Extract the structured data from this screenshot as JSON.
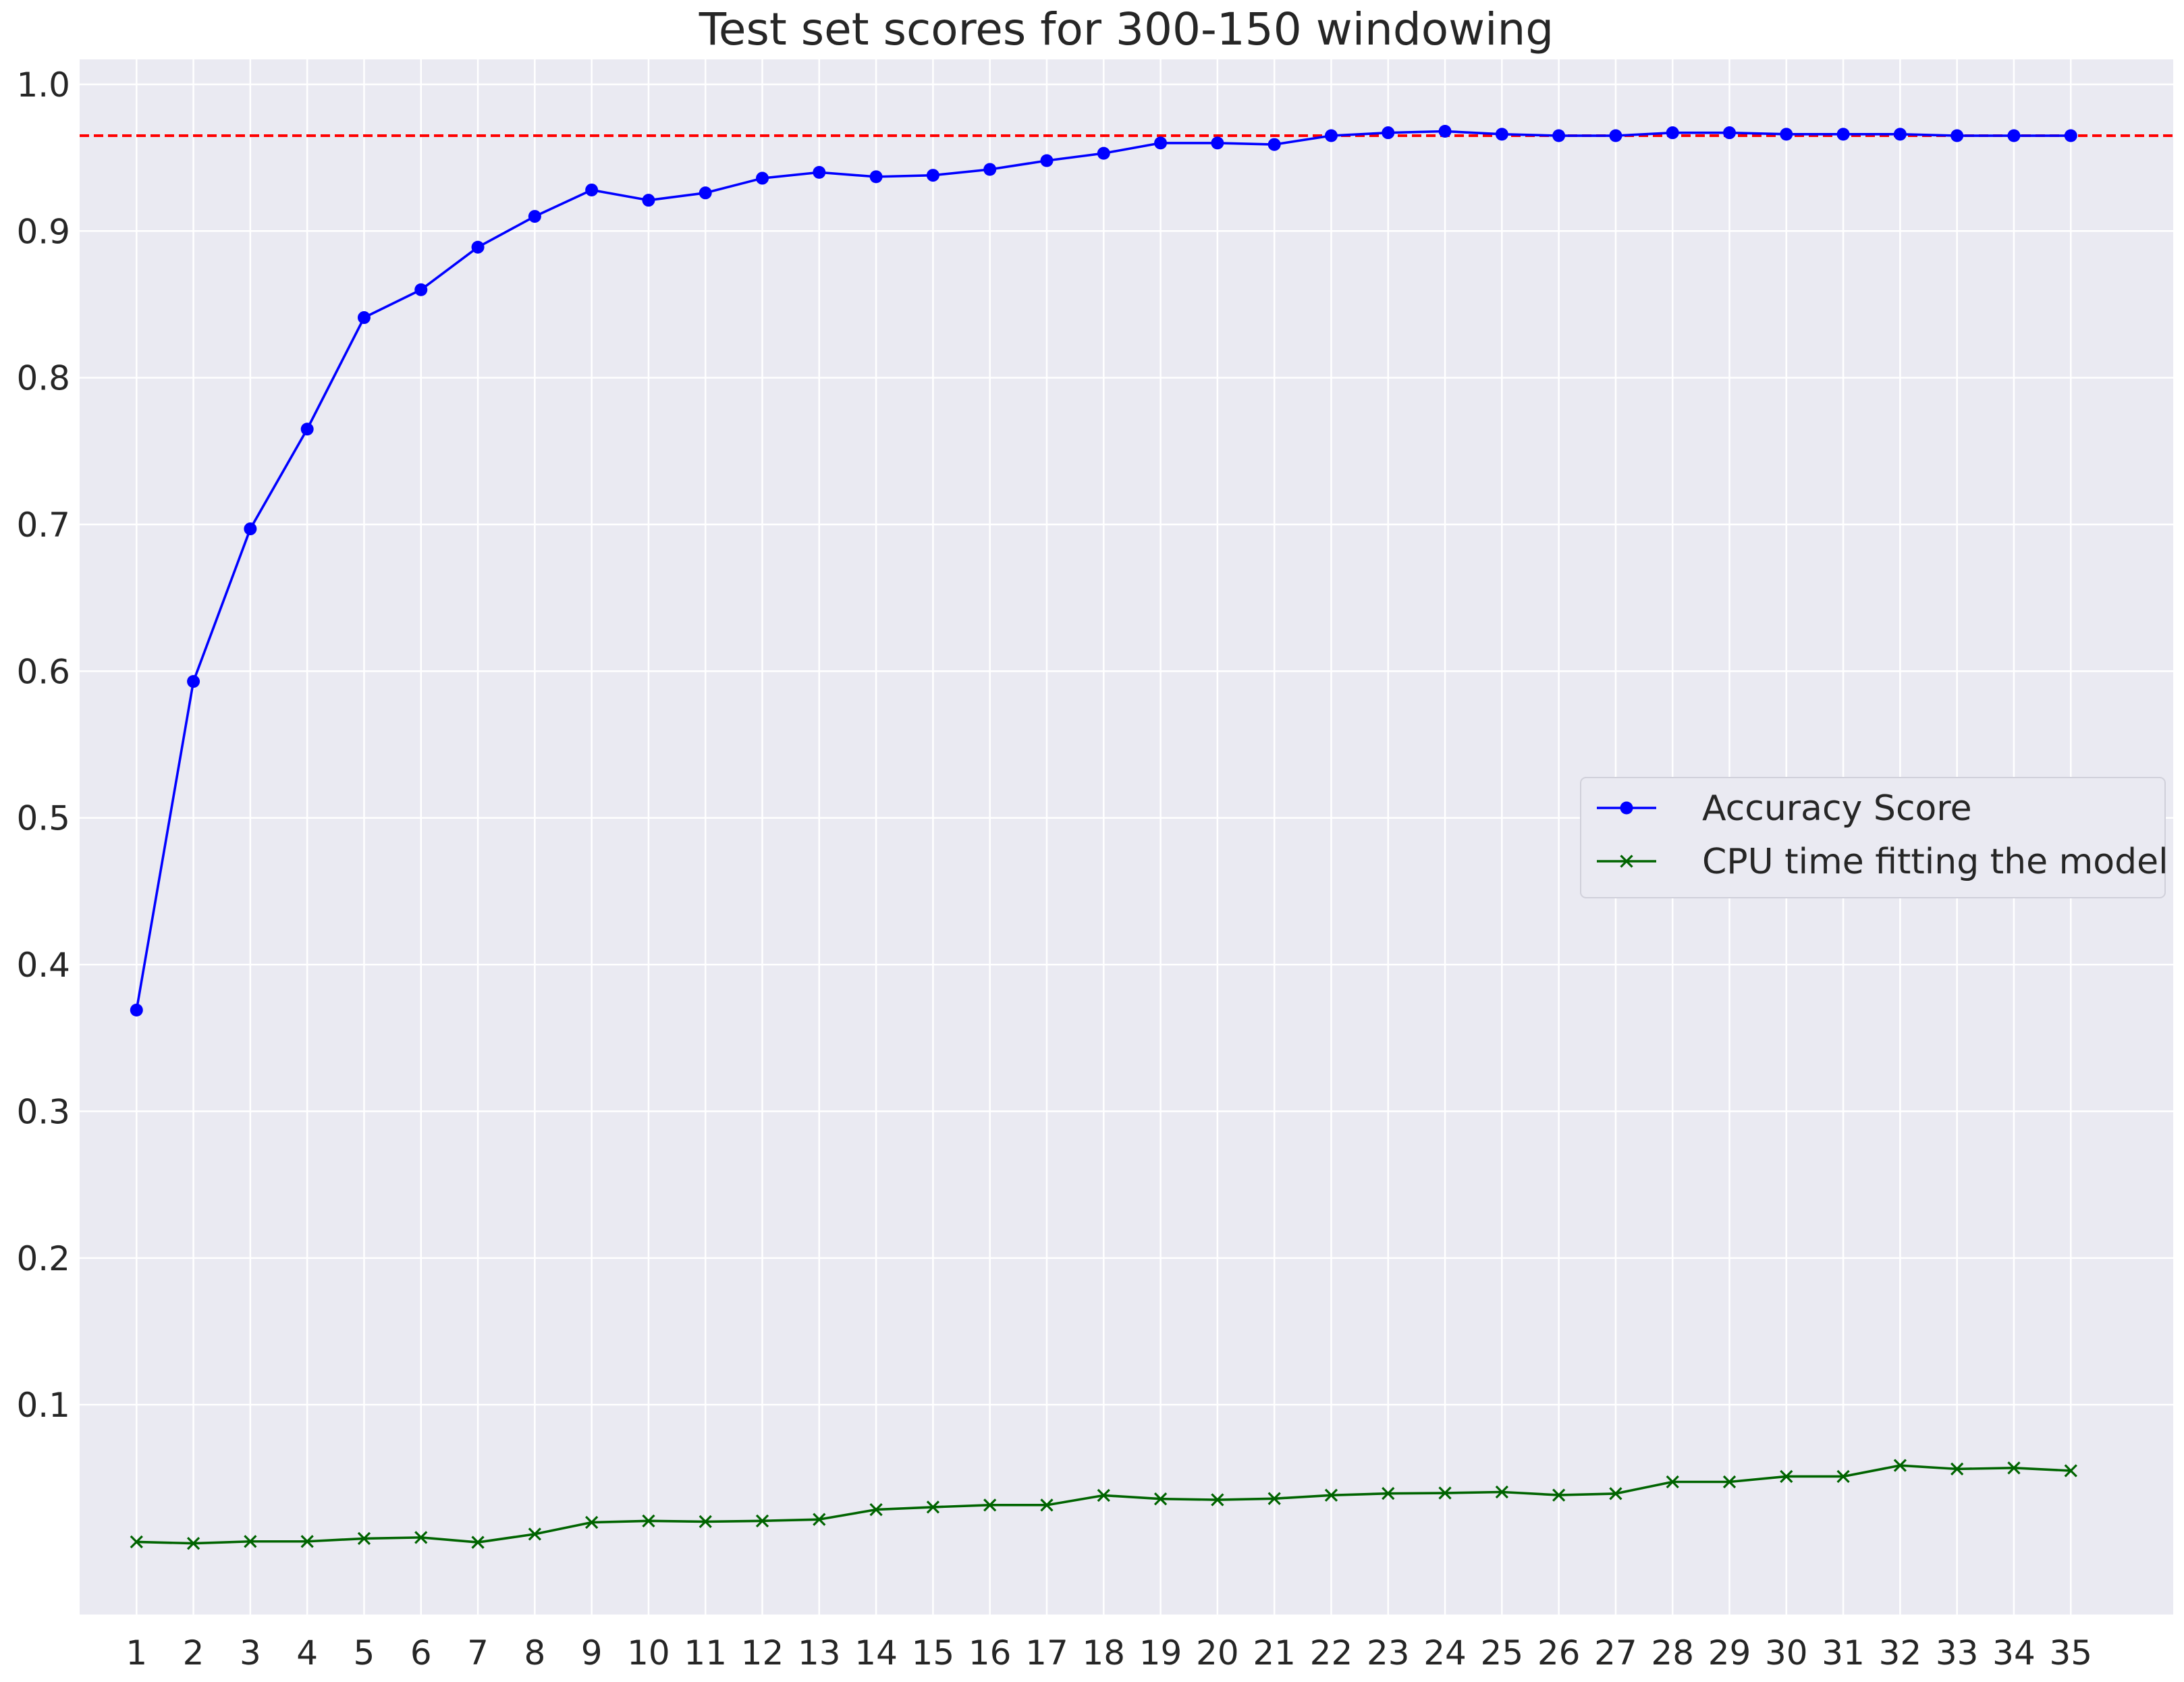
{
  "chart_data": {
    "type": "line",
    "title": "Test set scores for 300-150 windowing",
    "xlabel": "",
    "ylabel": "",
    "x": [
      1,
      2,
      3,
      4,
      5,
      6,
      7,
      8,
      9,
      10,
      11,
      12,
      13,
      14,
      15,
      16,
      17,
      18,
      19,
      20,
      21,
      22,
      23,
      24,
      25,
      26,
      27,
      28,
      29,
      30,
      31,
      32,
      33,
      34,
      35
    ],
    "x_tick_labels": [
      "1",
      "2",
      "3",
      "4",
      "5",
      "6",
      "7",
      "8",
      "9",
      "10",
      "11",
      "12",
      "13",
      "14",
      "15",
      "16",
      "17",
      "18",
      "19",
      "20",
      "21",
      "22",
      "23",
      "24",
      "25",
      "26",
      "27",
      "28",
      "29",
      "30",
      "31",
      "32",
      "33",
      "34",
      "35"
    ],
    "xlim": [
      0.0,
      36.8
    ],
    "y_ticks": [
      0.1,
      0.2,
      0.3,
      0.4,
      0.5,
      0.6,
      0.7,
      0.8,
      0.9,
      1.0
    ],
    "y_tick_labels": [
      "0.1",
      "0.2",
      "0.3",
      "0.4",
      "0.5",
      "0.6",
      "0.7",
      "0.8",
      "0.9",
      "1.0"
    ],
    "ylim": [
      -0.043,
      1.017
    ],
    "grid": true,
    "series": [
      {
        "name": "Accuracy Score",
        "color": "#0000ff",
        "marker": "circle",
        "values": [
          0.369,
          0.593,
          0.697,
          0.765,
          0.841,
          0.86,
          0.889,
          0.91,
          0.928,
          0.921,
          0.926,
          0.936,
          0.94,
          0.937,
          0.938,
          0.942,
          0.948,
          0.953,
          0.96,
          0.96,
          0.959,
          0.965,
          0.967,
          0.968,
          0.966,
          0.965,
          0.965,
          0.967,
          0.967,
          0.966,
          0.966,
          0.966,
          0.965,
          0.965,
          0.965
        ]
      },
      {
        "name": "CPU time fitting the model",
        "color": "#006400",
        "marker": "x",
        "values": [
          0.0065,
          0.0055,
          0.0068,
          0.0068,
          0.0088,
          0.0095,
          0.0062,
          0.0118,
          0.0198,
          0.0208,
          0.0203,
          0.0208,
          0.0218,
          0.0285,
          0.0302,
          0.0316,
          0.0316,
          0.0382,
          0.0358,
          0.0352,
          0.036,
          0.0383,
          0.0395,
          0.0398,
          0.0405,
          0.0384,
          0.0394,
          0.0474,
          0.0474,
          0.0511,
          0.0511,
          0.0586,
          0.0562,
          0.0569,
          0.055
        ]
      }
    ],
    "reference_line": {
      "value": 0.965,
      "color": "#ff0000",
      "style": "dashed"
    },
    "legend": {
      "position": "center-right"
    },
    "colors": {
      "plot_background": "#eaeaf2",
      "grid": "#ffffff",
      "page_background": "#ffffff"
    }
  }
}
